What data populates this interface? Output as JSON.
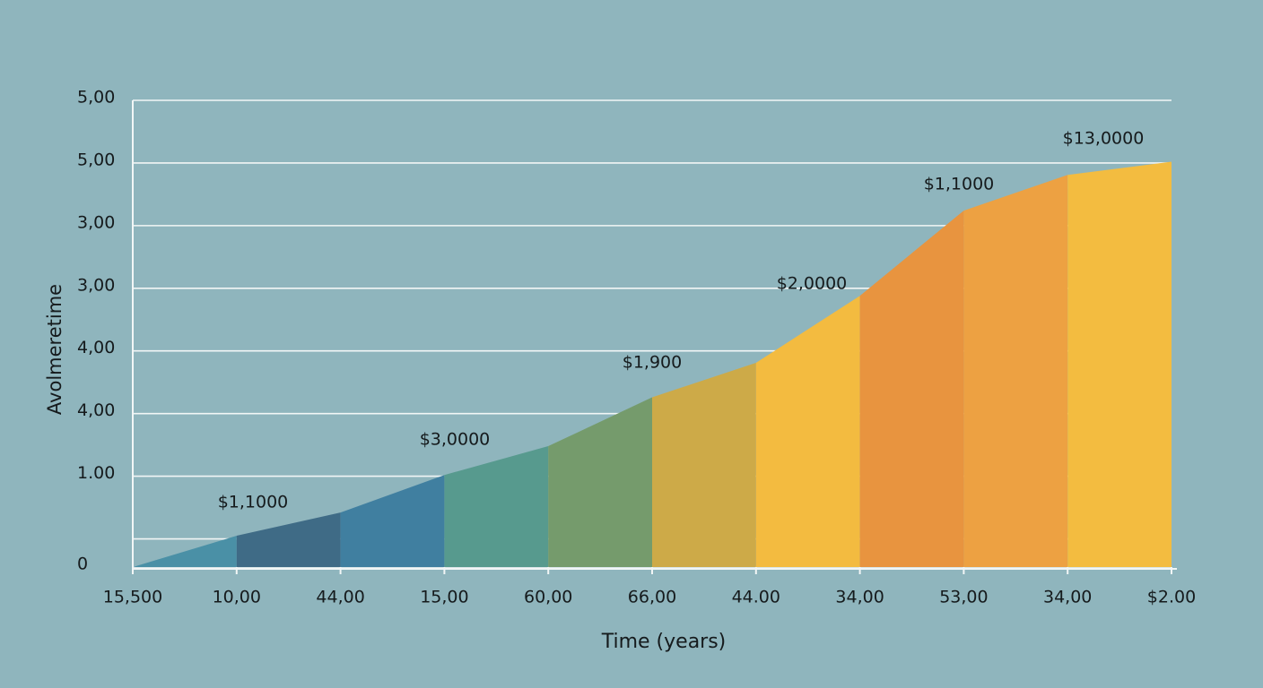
{
  "chart_data": {
    "type": "area",
    "y_label": "Avolmeretime",
    "x_label": "Time (years)",
    "categories": [
      "15,500",
      "10,00",
      "44,00",
      "15,00",
      "60,00",
      "66,00",
      "44.00",
      "34,00",
      "53,00",
      "34,00",
      "$2.00"
    ],
    "values": [
      0,
      0.5,
      0.87,
      1.47,
      1.93,
      2.71,
      3.26,
      4.33,
      5.69,
      6.26,
      6.47
    ],
    "segment_colors": [
      "#4a90a6",
      "#3f6b86",
      "#407fa0",
      "#579a8e",
      "#759b6c",
      "#cdaa48",
      "#f3bb40",
      "#e8943f",
      "#eda142",
      "#f3bc40"
    ],
    "annotations": [
      "$1,1000",
      "$3,0000",
      "$1,900",
      "$2,0000",
      "$1,1000",
      "$13,0000"
    ],
    "ylim": [
      0,
      7.45
    ],
    "yticks": [
      0,
      {
        "value": 1.45,
        "label": "1.00"
      },
      {
        "value": 2.45,
        "label": "4,00"
      },
      {
        "value": 3.45,
        "label": "4,00"
      },
      {
        "value": 4.45,
        "label": "3,00"
      },
      {
        "value": 5.45,
        "label": "3,00"
      },
      {
        "value": 6.45,
        "label": "5,00"
      },
      {
        "value": 7.45,
        "label": "5,00"
      }
    ],
    "minor_gridlines": [
      0.45
    ],
    "grid": true
  }
}
